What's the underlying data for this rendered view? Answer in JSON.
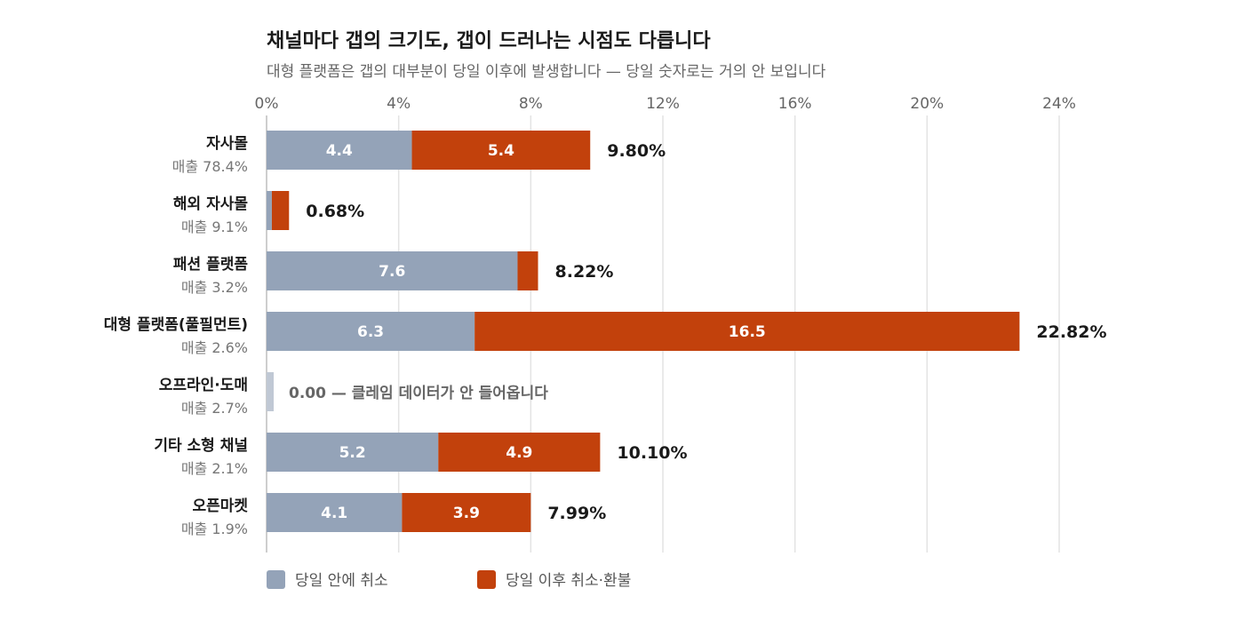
{
  "header": {
    "title": "채널마다 갭의 크기도, 갭이 드러나는 시점도 다릅니다",
    "subtitle": "대형 플랫폼은 갭의 대부분이 당일 이후에 발생합니다 — 당일 숫자로는 거의 안 보입니다"
  },
  "chart_data": {
    "type": "bar",
    "orientation": "horizontal",
    "stacked": true,
    "title": "채널마다 갭의 크기도, 갭이 드러나는 시점도 다릅니다",
    "subtitle": "대형 플랫폼은 갭의 대부분이 당일 이후에 발생합니다 — 당일 숫자로는 거의 안 보입니다",
    "xlim": [
      0,
      24
    ],
    "x_ticks": [
      0,
      4,
      8,
      12,
      16,
      20,
      24
    ],
    "x_tick_labels": [
      "0%",
      "4%",
      "8%",
      "12%",
      "16%",
      "20%",
      "24%"
    ],
    "grid": true,
    "legend_position": "bottom-left",
    "categories": [
      {
        "name": "자사몰",
        "sub": "매출 78.4%",
        "total_label": "9.80%"
      },
      {
        "name": "해외 자사몰",
        "sub": "매출 9.1%",
        "total_label": "0.68%"
      },
      {
        "name": "패션 플랫폼",
        "sub": "매출 3.2%",
        "total_label": "8.22%"
      },
      {
        "name": "대형 플랫폼(풀필먼트)",
        "sub": "매출 2.6%",
        "total_label": "22.82%"
      },
      {
        "name": "오프라인·도매",
        "sub": "매출 2.7%",
        "total_label": "",
        "note": "0.00 — 클레임 데이터가 안 들어옵니다"
      },
      {
        "name": "기타 소형 채널",
        "sub": "매출 2.1%",
        "total_label": "10.10%"
      },
      {
        "name": "오픈마켓",
        "sub": "매출 1.9%",
        "total_label": "7.99%"
      }
    ],
    "series": [
      {
        "name": "당일 안에 취소",
        "color": "#94a3b8",
        "values": [
          4.4,
          0.16,
          7.6,
          6.3,
          0.0,
          5.2,
          4.1
        ],
        "labels": [
          "4.4",
          "",
          "7.6",
          "6.3",
          "",
          "5.2",
          "4.1"
        ]
      },
      {
        "name": "당일 이후 취소·환불",
        "color": "#c2410c",
        "values": [
          5.4,
          0.52,
          0.62,
          16.5,
          0.0,
          4.9,
          3.9
        ],
        "labels": [
          "5.4",
          "",
          "",
          "16.5",
          "",
          "4.9",
          "3.9"
        ]
      }
    ],
    "placeholder_color": "#c0c8d4"
  }
}
